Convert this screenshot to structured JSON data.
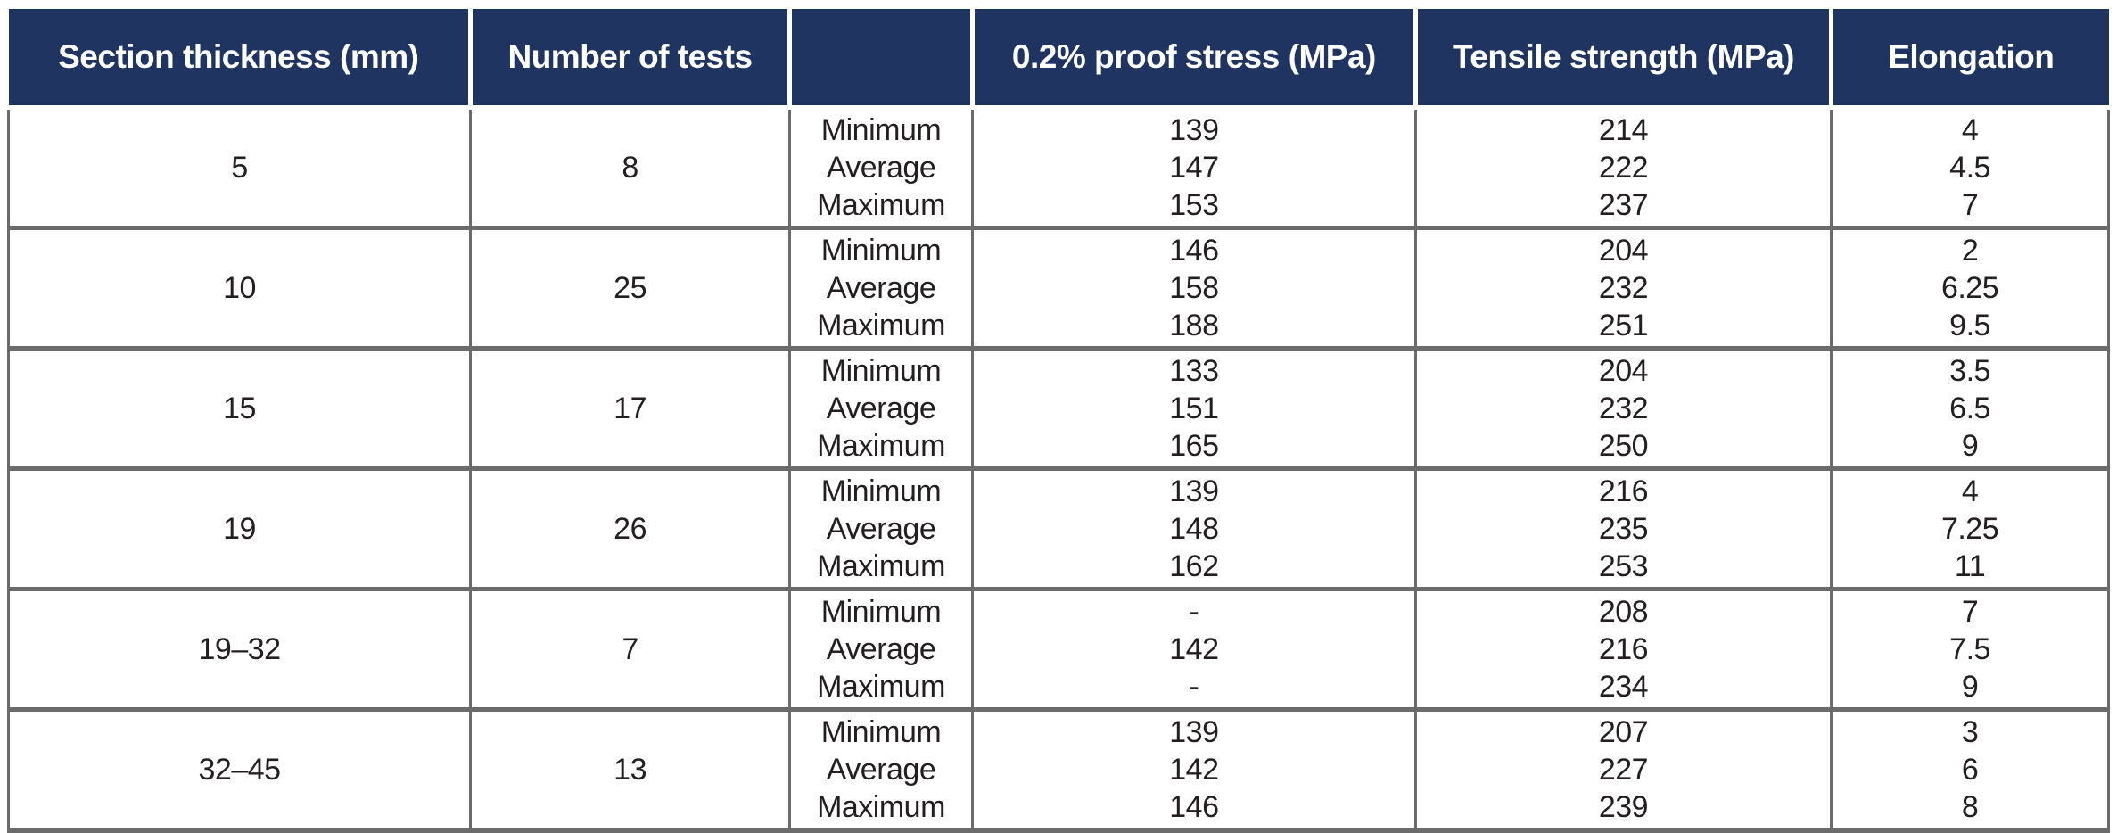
{
  "table": {
    "header": {
      "section_thickness": "Section thickness (mm)",
      "number_of_tests": "Number of tests",
      "stat": "",
      "proof_stress": "0.2% proof stress (MPa)",
      "tensile_strength": "Tensile strength (MPa)",
      "elongation": "Elongation"
    },
    "stat_labels": [
      "Minimum",
      "Average",
      "Maximum"
    ],
    "rows": [
      {
        "section_thickness": "5",
        "number_of_tests": "8",
        "proof_stress": [
          "139",
          "147",
          "153"
        ],
        "tensile_strength": [
          "214",
          "222",
          "237"
        ],
        "elongation": [
          "4",
          "4.5",
          "7"
        ]
      },
      {
        "section_thickness": "10",
        "number_of_tests": "25",
        "proof_stress": [
          "146",
          "158",
          "188"
        ],
        "tensile_strength": [
          "204",
          "232",
          "251"
        ],
        "elongation": [
          "2",
          "6.25",
          "9.5"
        ]
      },
      {
        "section_thickness": "15",
        "number_of_tests": "17",
        "proof_stress": [
          "133",
          "151",
          "165"
        ],
        "tensile_strength": [
          "204",
          "232",
          "250"
        ],
        "elongation": [
          "3.5",
          "6.5",
          "9"
        ]
      },
      {
        "section_thickness": "19",
        "number_of_tests": "26",
        "proof_stress": [
          "139",
          "148",
          "162"
        ],
        "tensile_strength": [
          "216",
          "235",
          "253"
        ],
        "elongation": [
          "4",
          "7.25",
          "11"
        ]
      },
      {
        "section_thickness": "19–32",
        "number_of_tests": "7",
        "proof_stress": [
          "-",
          "142",
          "-"
        ],
        "tensile_strength": [
          "208",
          "216",
          "234"
        ],
        "elongation": [
          "7",
          "7.5",
          "9"
        ]
      },
      {
        "section_thickness": "32–45",
        "number_of_tests": "13",
        "proof_stress": [
          "139",
          "142",
          "146"
        ],
        "tensile_strength": [
          "207",
          "227",
          "239"
        ],
        "elongation": [
          "3",
          "6",
          "8"
        ]
      }
    ],
    "colors": {
      "header_bg": "#1f3460",
      "header_text": "#ffffff",
      "body_text": "#231f20",
      "border_gray": "#6b6b6b"
    }
  }
}
